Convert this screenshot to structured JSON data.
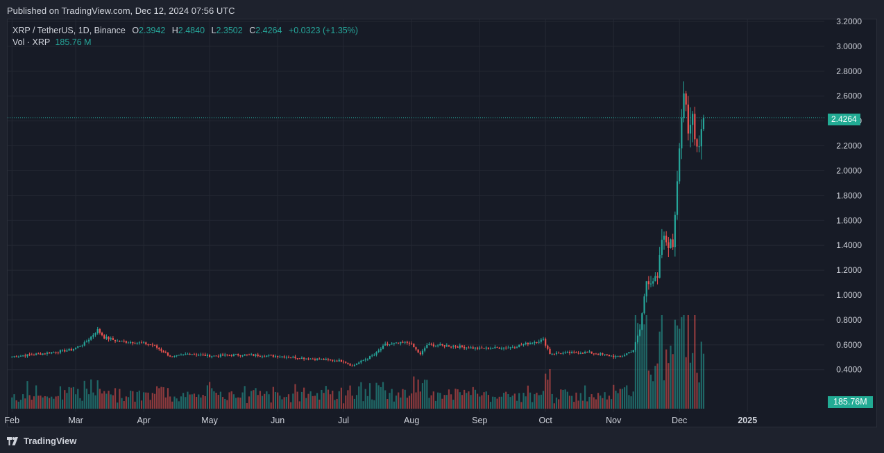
{
  "header": {
    "published": "Published on TradingView.com, Dec 12, 2024 07:56 UTC"
  },
  "legend": {
    "symbol": "XRP / TetherUS, 1D, Binance",
    "o_label": "O",
    "o_value": "2.3942",
    "h_label": "H",
    "h_value": "2.4840",
    "l_label": "L",
    "l_value": "2.3502",
    "c_label": "C",
    "c_value": "2.4264",
    "change": "+0.0323 (+1.35%)",
    "vol_label": "Vol · XRP",
    "vol_value": "185.76 M"
  },
  "price_tag": "2.4264",
  "volume_tag": "185.76M",
  "footer": {
    "brand": "TradingView"
  },
  "colors": {
    "up": "#26a69a",
    "down": "#ef5350",
    "bg": "#171b26",
    "grid": "#242833"
  },
  "chart_data": {
    "type": "candlestick",
    "x_ticks": [
      "Feb",
      "Mar",
      "Apr",
      "May",
      "Jun",
      "Jul",
      "Aug",
      "Sep",
      "Oct",
      "Nov",
      "Dec",
      "2025"
    ],
    "y_ticks": [
      "3.2000",
      "3.0000",
      "2.8000",
      "2.6000",
      "2.4000",
      "2.2000",
      "2.0000",
      "1.8000",
      "1.6000",
      "1.4000",
      "1.2000",
      "1.0000",
      "0.8000",
      "0.6000",
      "0.4000"
    ],
    "ylim": [
      0.34,
      3.2
    ],
    "last_close": 2.4264,
    "price_path": [
      [
        "2024-02-01",
        0.505
      ],
      [
        "2024-02-15",
        0.53
      ],
      [
        "2024-02-28",
        0.56
      ],
      [
        "2024-03-05",
        0.61
      ],
      [
        "2024-03-11",
        0.72
      ],
      [
        "2024-03-14",
        0.66
      ],
      [
        "2024-03-20",
        0.63
      ],
      [
        "2024-03-28",
        0.62
      ],
      [
        "2024-04-05",
        0.6
      ],
      [
        "2024-04-12",
        0.52
      ],
      [
        "2024-04-14",
        0.5
      ],
      [
        "2024-04-22",
        0.53
      ],
      [
        "2024-05-01",
        0.51
      ],
      [
        "2024-05-15",
        0.52
      ],
      [
        "2024-06-01",
        0.51
      ],
      [
        "2024-06-15",
        0.49
      ],
      [
        "2024-07-01",
        0.47
      ],
      [
        "2024-07-05",
        0.43
      ],
      [
        "2024-07-15",
        0.52
      ],
      [
        "2024-07-20",
        0.6
      ],
      [
        "2024-07-31",
        0.62
      ],
      [
        "2024-08-05",
        0.52
      ],
      [
        "2024-08-08",
        0.6
      ],
      [
        "2024-08-20",
        0.59
      ],
      [
        "2024-09-01",
        0.57
      ],
      [
        "2024-09-15",
        0.58
      ],
      [
        "2024-09-25",
        0.62
      ],
      [
        "2024-09-30",
        0.64
      ],
      [
        "2024-10-03",
        0.53
      ],
      [
        "2024-10-20",
        0.54
      ],
      [
        "2024-11-04",
        0.5
      ],
      [
        "2024-11-10",
        0.56
      ],
      [
        "2024-11-13",
        0.72
      ],
      [
        "2024-11-16",
        1.12
      ],
      [
        "2024-11-21",
        1.12
      ],
      [
        "2024-11-23",
        1.45
      ],
      [
        "2024-11-28",
        1.4
      ],
      [
        "2024-11-30",
        1.95
      ],
      [
        "2024-12-01",
        2.25
      ],
      [
        "2024-12-03",
        2.65
      ],
      [
        "2024-12-05",
        2.25
      ],
      [
        "2024-12-07",
        2.45
      ],
      [
        "2024-12-09",
        2.2
      ],
      [
        "2024-12-10",
        2.25
      ],
      [
        "2024-12-12",
        2.4264
      ]
    ]
  }
}
